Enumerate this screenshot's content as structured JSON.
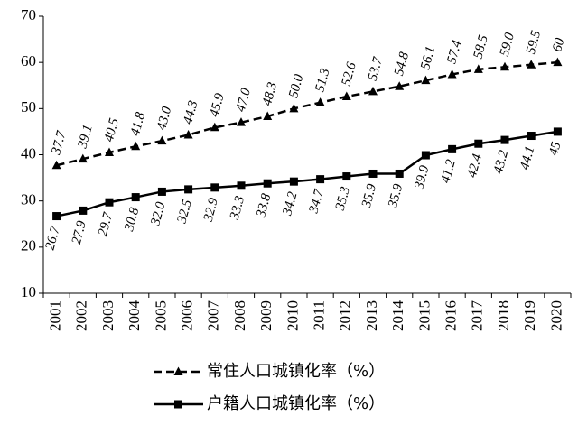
{
  "chart_data": {
    "type": "line",
    "categories": [
      "2001",
      "2002",
      "2003",
      "2004",
      "2005",
      "2006",
      "2007",
      "2008",
      "2009",
      "2010",
      "2011",
      "2012",
      "2013",
      "2014",
      "2015",
      "2016",
      "2017",
      "2018",
      "2019",
      "2020"
    ],
    "series": [
      {
        "name": "常住人口城镇化率（%）",
        "color": "#000000",
        "dash": "dashed",
        "marker": "triangle",
        "values": [
          37.7,
          39.1,
          40.5,
          41.8,
          43.0,
          44.3,
          45.9,
          47.0,
          48.3,
          50.0,
          51.3,
          52.6,
          53.7,
          54.8,
          56.1,
          57.4,
          58.5,
          59.0,
          59.5,
          60
        ],
        "value_labels": [
          "37.7",
          "39.1",
          "40.5",
          "41.8",
          "43.0",
          "44.3",
          "45.9",
          "47.0",
          "48.3",
          "50.0",
          "51.3",
          "52.6",
          "53.7",
          "54.8",
          "56.1",
          "57.4",
          "58.5",
          "59.0",
          "59.5",
          "60"
        ]
      },
      {
        "name": "户籍人口城镇化率（%）",
        "color": "#000000",
        "dash": "solid",
        "marker": "square",
        "values": [
          26.7,
          27.9,
          29.7,
          30.8,
          32.0,
          32.5,
          32.9,
          33.3,
          33.8,
          34.2,
          34.7,
          35.3,
          35.9,
          35.9,
          39.9,
          41.2,
          42.4,
          43.2,
          44.1,
          45
        ],
        "value_labels": [
          "26.7",
          "27.9",
          "29.7",
          "30.8",
          "32.0",
          "32.5",
          "32.9",
          "33.3",
          "33.8",
          "34.2",
          "34.7",
          "35.3",
          "35.9",
          "35.9",
          "39.9",
          "41.2",
          "42.4",
          "43.2",
          "44.1",
          "45"
        ]
      }
    ],
    "ylim": [
      10,
      70
    ],
    "yticks": [
      10,
      20,
      30,
      40,
      50,
      60,
      70
    ],
    "grid": false,
    "legend": "bottom"
  }
}
